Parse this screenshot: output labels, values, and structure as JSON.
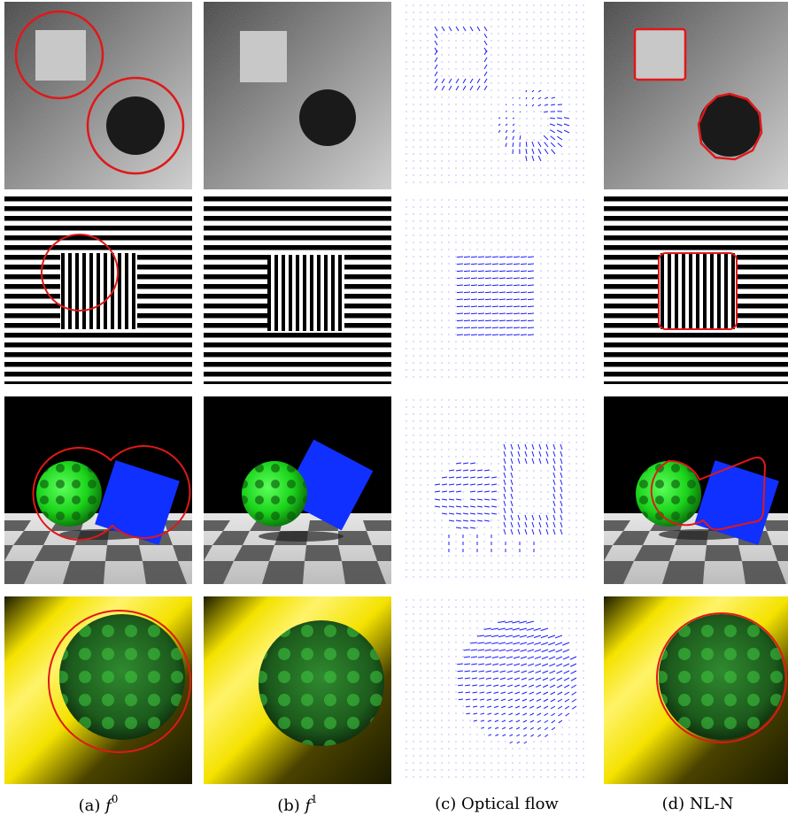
{
  "captions": [
    {
      "prefix": "(a) ",
      "symbol": "f",
      "sup": "0"
    },
    {
      "prefix": "(b) ",
      "symbol": "f",
      "sup": "1"
    },
    {
      "prefix": "(c) Optical flow",
      "symbol": "",
      "sup": ""
    },
    {
      "prefix": "(d) NL-N",
      "symbol": "",
      "sup": ""
    }
  ],
  "colors": {
    "contour": "#e01818",
    "flow": "#1a1aff",
    "sphere_green": "#1bd31b",
    "cube_blue": "#1030ff",
    "yellow": "#f4e200"
  },
  "rows": [
    {
      "scene": "noisy-square-and-disk"
    },
    {
      "scene": "striped-square"
    },
    {
      "scene": "sphere-and-cube-on-checkerboard"
    },
    {
      "scene": "textured-sphere-on-yellow-stripes"
    }
  ]
}
